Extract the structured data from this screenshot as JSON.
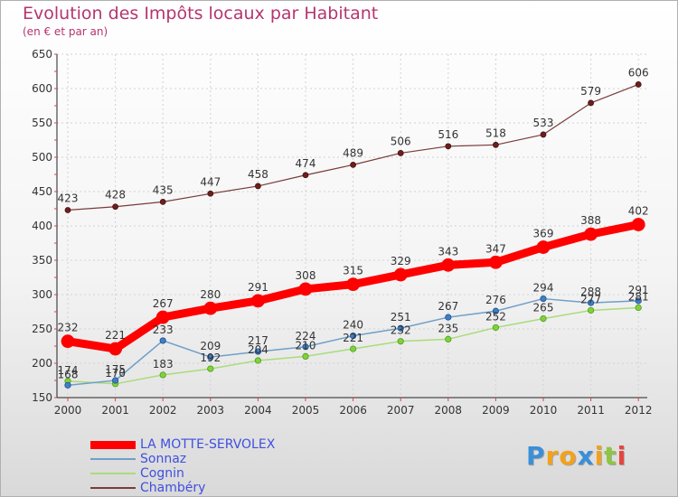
{
  "header": {
    "title": "Evolution des Impôts locaux par Habitant",
    "subtitle": "(en € et par an)"
  },
  "chart_data": {
    "type": "line",
    "title": "Evolution des Impôts locaux par Habitant",
    "subtitle": "(en € et par an)",
    "xlabel": "",
    "ylabel": "",
    "x": [
      2000,
      2001,
      2002,
      2003,
      2004,
      2005,
      2006,
      2007,
      2008,
      2009,
      2010,
      2011,
      2012
    ],
    "ylim": [
      150,
      650
    ],
    "yticks": [
      150,
      200,
      250,
      300,
      350,
      400,
      450,
      500,
      550,
      600,
      650
    ],
    "grid": true,
    "legend_position": "bottom-left",
    "series": [
      {
        "name": "LA MOTTE-SERVOLEX",
        "color": "#ff0000",
        "values": [
          232,
          221,
          267,
          280,
          291,
          308,
          315,
          329,
          343,
          347,
          369,
          388,
          402
        ]
      },
      {
        "name": "Sonnaz",
        "color": "#6f9fc8",
        "values": [
          168,
          175,
          233,
          209,
          217,
          224,
          240,
          251,
          267,
          276,
          294,
          288,
          291
        ]
      },
      {
        "name": "Cognin",
        "color": "#a9dc7a",
        "values": [
          174,
          170,
          183,
          192,
          204,
          210,
          221,
          232,
          235,
          252,
          265,
          277,
          281
        ]
      },
      {
        "name": "Chambéry",
        "color": "#7a3b3b",
        "values": [
          423,
          428,
          435,
          447,
          458,
          474,
          489,
          506,
          516,
          518,
          533,
          579,
          606
        ]
      }
    ]
  },
  "logo": {
    "letters": [
      "P",
      "r",
      "o",
      "x",
      "i",
      "t",
      "i"
    ],
    "colors": [
      "#3a8fd8",
      "#f2a21b",
      "#f2a21b",
      "#3a8fd8",
      "#f2a21b",
      "#8dc63f",
      "#e8433c"
    ]
  }
}
